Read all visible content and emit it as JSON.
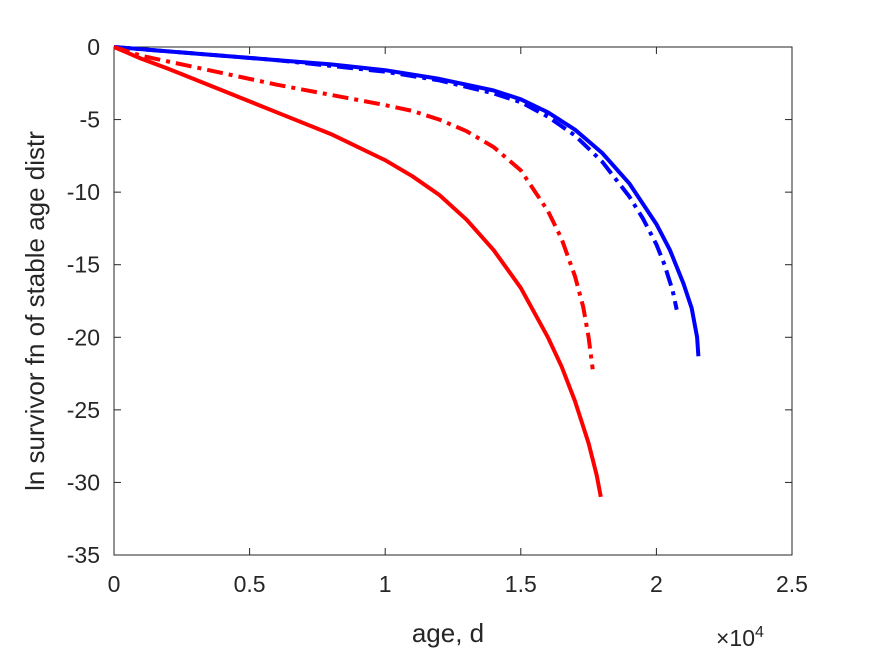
{
  "chart_data": {
    "type": "line",
    "title": "",
    "xlabel": "age, d",
    "ylabel": "ln survivor fn of stable age distr",
    "x_multiplier_label": "×10",
    "x_multiplier_exponent": "4",
    "xlim": [
      0,
      25000
    ],
    "ylim": [
      -35,
      0
    ],
    "x_ticks": [
      0,
      5000,
      10000,
      15000,
      20000,
      25000
    ],
    "x_tick_labels": [
      "0",
      "0.5",
      "1",
      "1.5",
      "2",
      "2.5"
    ],
    "y_ticks": [
      0,
      -5,
      -10,
      -15,
      -20,
      -25,
      -30,
      -35
    ],
    "y_tick_labels": [
      "0",
      "-5",
      "-10",
      "-15",
      "-20",
      "-25",
      "-30",
      "-35"
    ],
    "grid": false,
    "legend": "none",
    "series": [
      {
        "color": "#0000ff",
        "dash": "solid",
        "x": [
          0,
          2000,
          4000,
          6000,
          8000,
          10000,
          12000,
          14000,
          15000,
          16000,
          17000,
          18000,
          19000,
          20000,
          20500,
          21000,
          21300,
          21500,
          21550
        ],
        "y": [
          0,
          -0.3,
          -0.6,
          -0.9,
          -1.2,
          -1.6,
          -2.2,
          -3.0,
          -3.6,
          -4.5,
          -5.7,
          -7.3,
          -9.4,
          -12.2,
          -14.0,
          -16.3,
          -18.0,
          -20.0,
          -21.3
        ]
      },
      {
        "color": "#0000ff",
        "dash": "dash-dot",
        "x": [
          0,
          2000,
          4000,
          6000,
          8000,
          10000,
          12000,
          14000,
          15000,
          16000,
          17000,
          18000,
          19000,
          19500,
          20000,
          20300,
          20600,
          20750
        ],
        "y": [
          0,
          -0.3,
          -0.6,
          -0.9,
          -1.3,
          -1.7,
          -2.3,
          -3.2,
          -3.8,
          -4.8,
          -6.1,
          -7.9,
          -10.3,
          -11.8,
          -13.6,
          -15.0,
          -16.8,
          -18.1
        ]
      },
      {
        "color": "#ff0000",
        "dash": "dash-dot",
        "x": [
          0,
          1000,
          2000,
          4000,
          6000,
          8000,
          10000,
          11000,
          12000,
          13000,
          14000,
          15000,
          16000,
          16500,
          17000,
          17300,
          17500,
          17650
        ],
        "y": [
          0,
          -0.6,
          -1.0,
          -1.8,
          -2.6,
          -3.3,
          -4.0,
          -4.4,
          -5.0,
          -5.8,
          -6.9,
          -8.5,
          -11.3,
          -13.2,
          -15.8,
          -17.9,
          -20.0,
          -22.2
        ]
      },
      {
        "color": "#ff0000",
        "dash": "solid",
        "x": [
          0,
          1000,
          2000,
          4000,
          6000,
          8000,
          10000,
          11000,
          12000,
          13000,
          14000,
          15000,
          16000,
          16500,
          17000,
          17500,
          17800,
          17950
        ],
        "y": [
          0,
          -0.8,
          -1.5,
          -3.0,
          -4.5,
          -6.0,
          -7.8,
          -8.9,
          -10.2,
          -11.9,
          -14.0,
          -16.6,
          -20.0,
          -22.0,
          -24.4,
          -27.3,
          -29.5,
          -31.0
        ]
      }
    ]
  }
}
